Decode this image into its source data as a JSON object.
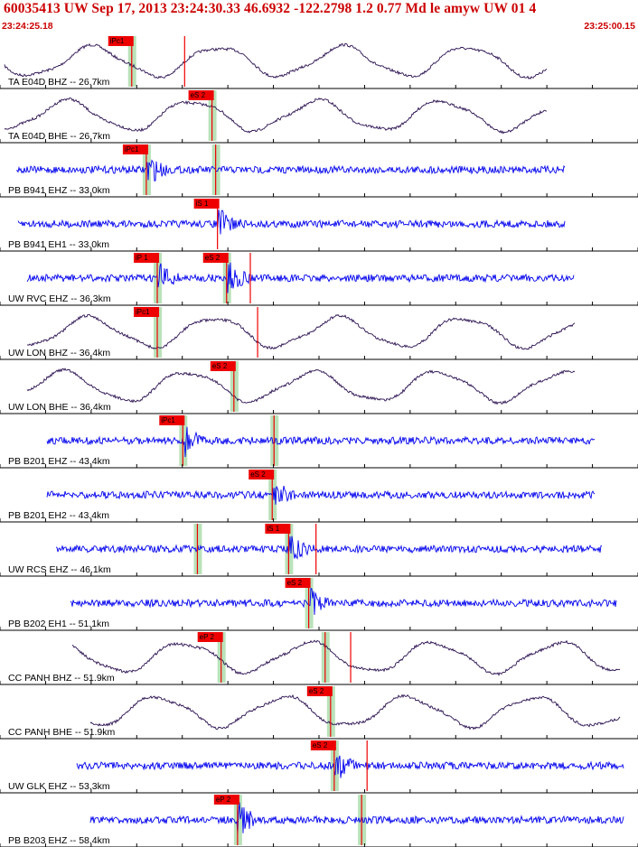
{
  "header": {
    "title": "60035413 UW Sep 17, 2013 23:24:30.33   46.6932 -122.2798  1.2 0.77 Md le amyw UW 01   4",
    "time_start": "23:24:25.18",
    "time_end": "23:25:00.15"
  },
  "colors": {
    "broadband_trace": "#2a1050",
    "shortperiod_trace": "#0000ee",
    "pick_box": "#ee0000",
    "pick_window": "#b9e2b9",
    "header_text": "#cc0000"
  },
  "chart_data": {
    "type": "line",
    "x_range": [
      "23:24:25.18",
      "23:25:00.15"
    ],
    "traces": [
      {
        "label": "TA E04D BHZ -- 26.7km",
        "kind": "broadband",
        "picks": [
          {
            "label": "iPc1",
            "t": "23:24:32.4",
            "window": true
          },
          {
            "label": "",
            "t": "23:24:35.3",
            "window": false
          }
        ]
      },
      {
        "label": "TA E04D BHE -- 26.7km",
        "kind": "broadband",
        "picks": [
          {
            "label": "eS 2",
            "t": "23:24:36.8",
            "window": true
          }
        ]
      },
      {
        "label": "PB B941 EHZ -- 33.0km",
        "kind": "shortperiod",
        "picks": [
          {
            "label": "iPc1",
            "t": "23:24:33.2",
            "window": true
          },
          {
            "label": "",
            "t": "23:24:37.0",
            "window": true
          }
        ]
      },
      {
        "label": "PB B941 EH1 -- 33.0km",
        "kind": "shortperiod",
        "picks": [
          {
            "label": "iS 1",
            "t": "23:24:37.1",
            "window": false
          }
        ]
      },
      {
        "label": "UW RVC EHZ -- 36.3km",
        "kind": "shortperiod",
        "picks": [
          {
            "label": "iP 1",
            "t": "23:24:33.8",
            "window": true
          },
          {
            "label": "eS 2",
            "t": "23:24:37.6",
            "window": true
          },
          {
            "label": "",
            "t": "23:24:38.9",
            "window": false
          }
        ]
      },
      {
        "label": "UW LON BHZ -- 36.4km",
        "kind": "broadband",
        "picks": [
          {
            "label": "iPc1",
            "t": "23:24:33.8",
            "window": true
          },
          {
            "label": "",
            "t": "23:24:39.3",
            "window": false
          }
        ]
      },
      {
        "label": "UW LON BHE -- 36.4km",
        "kind": "broadband",
        "picks": [
          {
            "label": "eS 2",
            "t": "23:24:38.0",
            "window": true
          }
        ]
      },
      {
        "label": "PB B201 EHZ -- 43.4km",
        "kind": "shortperiod",
        "picks": [
          {
            "label": "iPc1",
            "t": "23:24:35.2",
            "window": true
          },
          {
            "label": "",
            "t": "23:24:40.2",
            "window": true
          }
        ]
      },
      {
        "label": "PB B201 EH2 -- 43.4km",
        "kind": "shortperiod",
        "picks": [
          {
            "label": "eS 2",
            "t": "23:24:40.1",
            "window": true
          }
        ]
      },
      {
        "label": "UW RCS EHZ -- 46.1km",
        "kind": "shortperiod",
        "picks": [
          {
            "label": "iS 1",
            "t": "23:24:41.0",
            "window": true
          },
          {
            "label": "",
            "t": "23:24:36.0",
            "window": true
          },
          {
            "label": "",
            "t": "23:24:42.5",
            "window": false
          }
        ]
      },
      {
        "label": "PB B202 EH1 -- 51.1km",
        "kind": "shortperiod",
        "picks": [
          {
            "label": "eS 2",
            "t": "23:24:42.1",
            "window": true
          }
        ]
      },
      {
        "label": "CC PANH BHZ -- 51.9km",
        "kind": "broadband",
        "picks": [
          {
            "label": "eP 2",
            "t": "23:24:37.3",
            "window": true
          },
          {
            "label": "",
            "t": "23:24:43.0",
            "window": true
          },
          {
            "label": "",
            "t": "23:24:44.4",
            "window": false
          }
        ]
      },
      {
        "label": "CC PANH BHE -- 51.9km",
        "kind": "broadband",
        "picks": [
          {
            "label": "eS 2",
            "t": "23:24:43.3",
            "window": true
          }
        ]
      },
      {
        "label": "UW GLK EHZ -- 53.3km",
        "kind": "shortperiod",
        "picks": [
          {
            "label": "eS 2",
            "t": "23:24:43.5",
            "window": true
          },
          {
            "label": "",
            "t": "23:24:45.3",
            "window": false
          }
        ]
      },
      {
        "label": "PB B203 EHZ -- 58.4km",
        "kind": "shortperiod",
        "picks": [
          {
            "label": "eP 2",
            "t": "23:24:38.2",
            "window": true
          },
          {
            "label": "",
            "t": "23:24:45.0",
            "window": true
          }
        ]
      }
    ]
  }
}
